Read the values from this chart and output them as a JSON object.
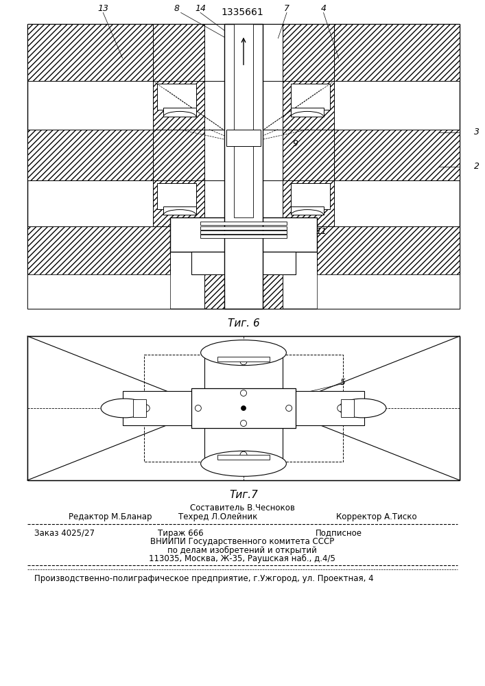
{
  "patent_number": "1335661",
  "fig6_caption": "Τиг. 6",
  "fig7_caption": "Τиг.7",
  "bg_color": "#ffffff",
  "line_color": "#000000",
  "footer": {
    "line1": "Составитель В.Чесноков",
    "line2_left": "Редактор М.Бланар",
    "line2_mid": "Техред Л.Олейник",
    "line2_right": "Корректор А.Тиско",
    "line3_a": "Заказ 4025/27",
    "line3_b": "Тираж 666",
    "line3_c": "Подписное",
    "line4": "ВНИИПИ Государственного комитета СССР",
    "line5": "по делам изобретений и открытий",
    "line6": "113035, Москва, Ж-35, Раушская наб., д.4/5",
    "line7": "Производственно-полиграфическое предприятие, г.Ужгород, ул. Проектная, 4"
  }
}
